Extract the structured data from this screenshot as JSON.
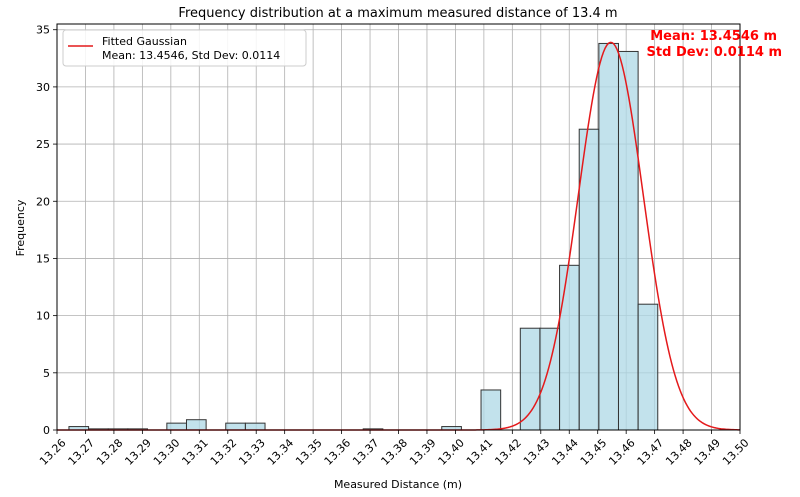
{
  "chart_data": {
    "type": "bar",
    "title": "Frequency distribution at a maximum measured distance of 13.4 m",
    "xlabel": "Measured Distance (m)",
    "ylabel": "Frequency",
    "xlim": [
      13.26,
      13.5
    ],
    "ylim": [
      0,
      35.5
    ],
    "x_ticks": [
      "13.26",
      "13.27",
      "13.28",
      "13.29",
      "13.30",
      "13.31",
      "13.32",
      "13.33",
      "13.34",
      "13.35",
      "13.36",
      "13.37",
      "13.38",
      "13.39",
      "13.40",
      "13.41",
      "13.42",
      "13.43",
      "13.44",
      "13.45",
      "13.46",
      "13.47",
      "13.48",
      "13.49",
      "13.50"
    ],
    "y_ticks": [
      "0",
      "5",
      "10",
      "15",
      "20",
      "25",
      "30",
      "35"
    ],
    "grid": true,
    "legend_position": "top-left",
    "bar_color": "#add8e6",
    "bar_edge_color": "#333333",
    "bins": [
      {
        "start": 13.2642,
        "end": 13.2711,
        "value": 0.3
      },
      {
        "start": 13.2711,
        "end": 13.278,
        "value": 0.1
      },
      {
        "start": 13.278,
        "end": 13.2849,
        "value": 0.1
      },
      {
        "start": 13.2849,
        "end": 13.2918,
        "value": 0.1
      },
      {
        "start": 13.2986,
        "end": 13.3055,
        "value": 0.6
      },
      {
        "start": 13.3055,
        "end": 13.3124,
        "value": 0.9
      },
      {
        "start": 13.3193,
        "end": 13.3262,
        "value": 0.6
      },
      {
        "start": 13.3262,
        "end": 13.3331,
        "value": 0.6
      },
      {
        "start": 13.3676,
        "end": 13.3745,
        "value": 0.1
      },
      {
        "start": 13.3952,
        "end": 13.4021,
        "value": 0.3
      },
      {
        "start": 13.409,
        "end": 13.4159,
        "value": 3.5
      },
      {
        "start": 13.4228,
        "end": 13.4297,
        "value": 8.9
      },
      {
        "start": 13.4297,
        "end": 13.4366,
        "value": 8.9
      },
      {
        "start": 13.4366,
        "end": 13.4435,
        "value": 14.4
      },
      {
        "start": 13.4435,
        "end": 13.4504,
        "value": 26.3
      },
      {
        "start": 13.4504,
        "end": 13.4573,
        "value": 33.8
      },
      {
        "start": 13.4573,
        "end": 13.4642,
        "value": 33.1
      },
      {
        "start": 13.4642,
        "end": 13.4711,
        "value": 11.0
      }
    ],
    "series": [
      {
        "name": "Fitted Gaussian",
        "type": "line",
        "color": "#e41a1c",
        "mean": 13.4546,
        "std_dev": 0.0114,
        "peak": 33.9
      }
    ],
    "legend": {
      "line1": "Fitted Gaussian",
      "line2": "Mean: 13.4546, Std Dev: 0.0114"
    },
    "annotation": {
      "line1": "Mean: 13.4546 m",
      "line2": "Std Dev: 0.0114 m",
      "color": "#ff0000"
    }
  }
}
